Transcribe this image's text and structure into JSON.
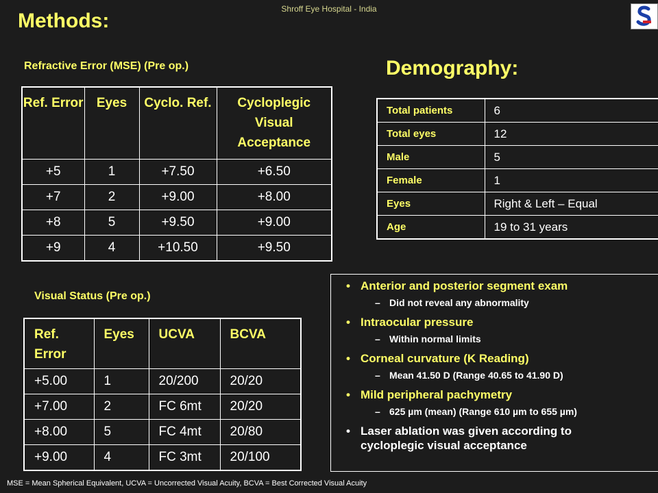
{
  "header": {
    "hospital": "Shroff Eye Hospital - India",
    "title": "Methods:"
  },
  "refraction": {
    "title": "Refractive Error (MSE) (Pre op.)",
    "headers": [
      "Ref. Error",
      "Eyes",
      "Cyclo. Ref.",
      "Cycloplegic Visual Acceptance"
    ],
    "rows": [
      [
        "+5",
        "1",
        "+7.50",
        "+6.50"
      ],
      [
        "+7",
        "2",
        "+9.00",
        "+8.00"
      ],
      [
        "+8",
        "5",
        "+9.50",
        "+9.00"
      ],
      [
        "+9",
        "4",
        "+10.50",
        "+9.50"
      ]
    ]
  },
  "visual_status": {
    "title": "Visual Status (Pre op.)",
    "headers": [
      "Ref. Error",
      "Eyes",
      "UCVA",
      "BCVA"
    ],
    "rows": [
      [
        "+5.00",
        "1",
        "20/200",
        "20/20"
      ],
      [
        "+7.00",
        "2",
        "FC 6mt",
        "20/20"
      ],
      [
        "+8.00",
        "5",
        "FC 4mt",
        "20/80"
      ],
      [
        "+9.00",
        "4",
        "FC 3mt",
        "20/100"
      ]
    ]
  },
  "demography": {
    "title": "Demography:",
    "rows": [
      [
        "Total patients",
        "6"
      ],
      [
        "Total eyes",
        "12"
      ],
      [
        "Male",
        "5"
      ],
      [
        "Female",
        "1"
      ],
      [
        "Eyes",
        "Right & Left – Equal"
      ],
      [
        "Age",
        "19 to 31 years"
      ]
    ]
  },
  "findings": [
    {
      "text": "Anterior and posterior segment exam",
      "sub": "Did not reveal any abnormality"
    },
    {
      "text": "Intraocular pressure",
      "sub": "Within normal limits"
    },
    {
      "text": "Corneal curvature (K Reading)",
      "sub": "Mean 41.50 D (Range 40.65 to 41.90 D)"
    },
    {
      "text": "Mild peripheral pachymetry",
      "sub": "625 µm (mean) (Range 610 µm to 655 µm)"
    },
    {
      "text": "Laser ablation was given according to cycloplegic visual acceptance",
      "sub": ""
    }
  ],
  "footer": "MSE = Mean Spherical Equivalent,  UCVA = Uncorrected Visual Acuity, BCVA = Best Corrected Visual Acuity",
  "colors": {
    "background": "#1c1c1c",
    "heading": "#ffff66",
    "text": "#ffffff"
  },
  "logo_icon": "shroff-logo-icon"
}
